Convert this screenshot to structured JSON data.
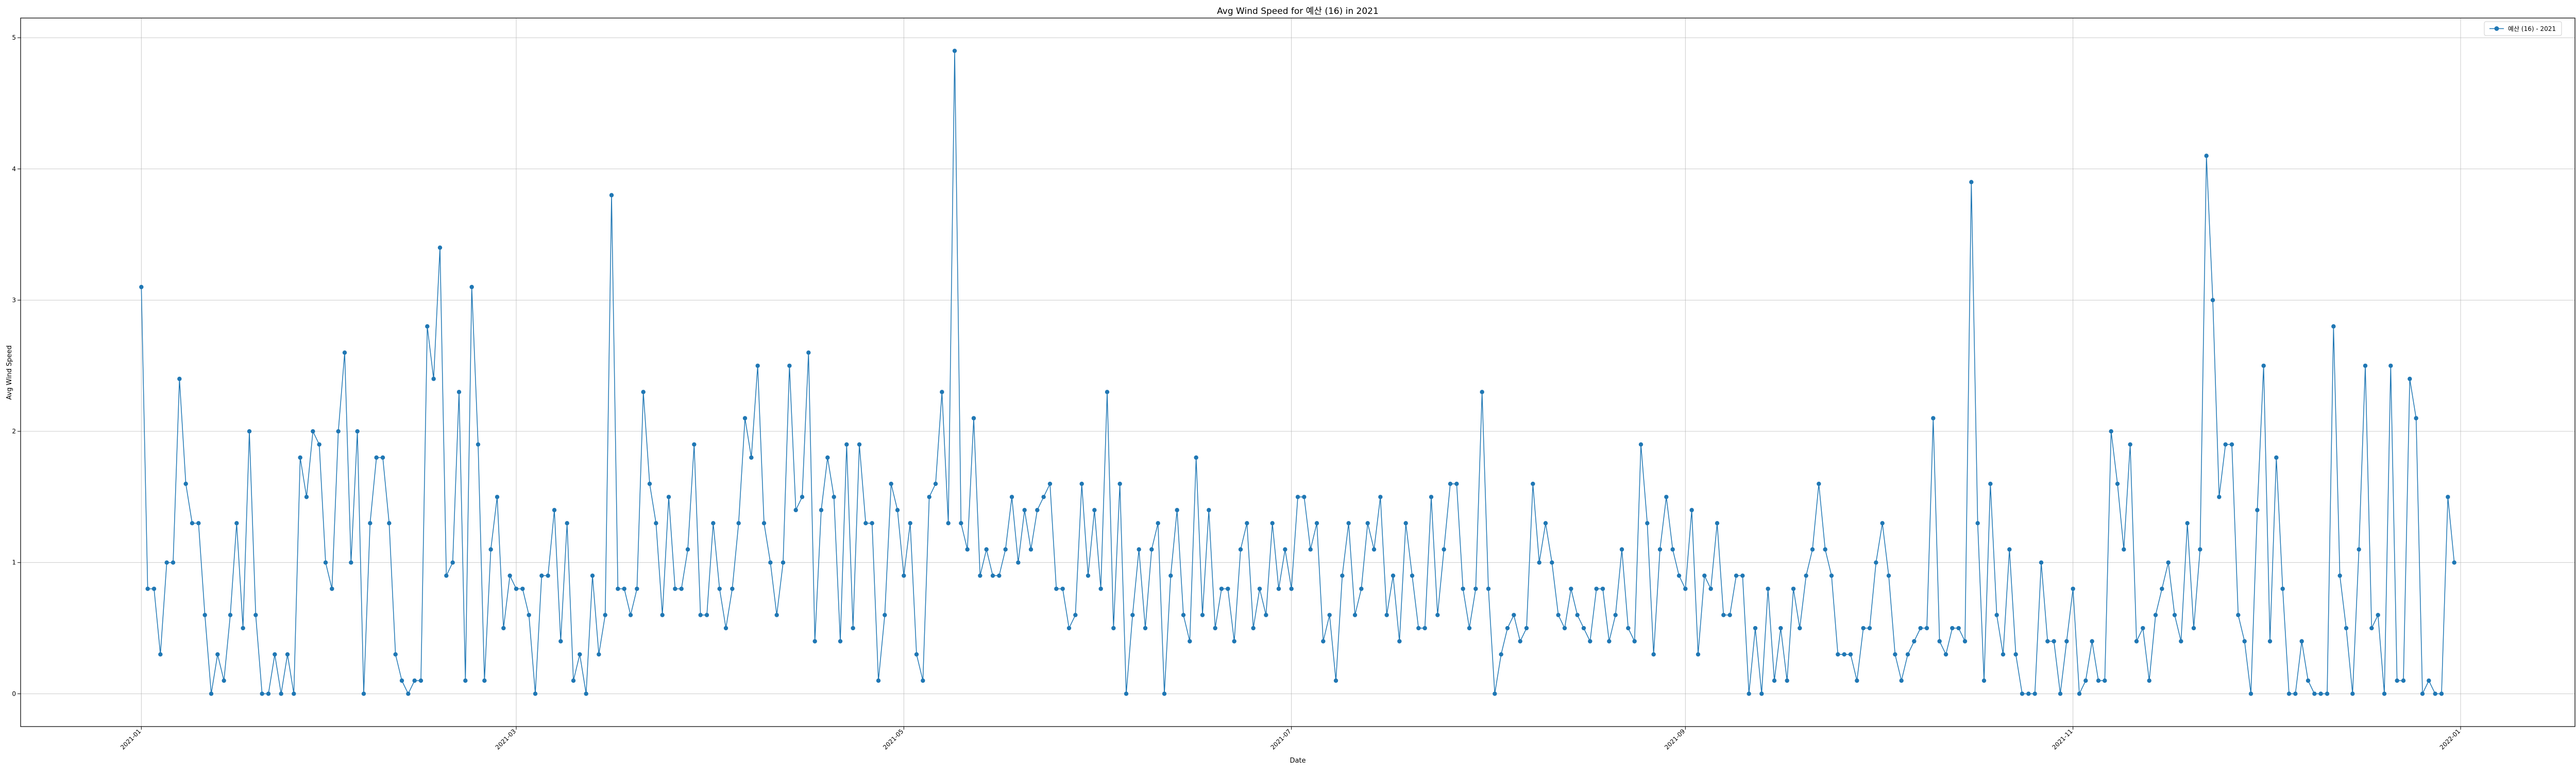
{
  "colors": {
    "background": "#ffffff",
    "series": "#1f77b4",
    "grid": "#b0b0b0",
    "axis": "#000000"
  },
  "chart_data": {
    "type": "line",
    "title": "Avg Wind Speed for 예산 (16) in 2021",
    "xlabel": "Date",
    "ylabel": "Avg Wind Speed",
    "grid": true,
    "legend_position": "top-right",
    "marker": "circle",
    "xlim": [
      "2020-12-13",
      "2022-01-19"
    ],
    "ylim": [
      -0.25,
      5.15
    ],
    "x_ticks": [
      {
        "date": "2021-01-01",
        "label": "2021-01"
      },
      {
        "date": "2021-03-01",
        "label": "2021-03"
      },
      {
        "date": "2021-05-01",
        "label": "2021-05"
      },
      {
        "date": "2021-07-01",
        "label": "2021-07"
      },
      {
        "date": "2021-09-01",
        "label": "2021-09"
      },
      {
        "date": "2021-11-01",
        "label": "2021-11"
      },
      {
        "date": "2022-01-01",
        "label": "2022-01"
      }
    ],
    "y_ticks": [
      {
        "value": 0,
        "label": "0"
      },
      {
        "value": 1,
        "label": "1"
      },
      {
        "value": 2,
        "label": "2"
      },
      {
        "value": 3,
        "label": "3"
      },
      {
        "value": 4,
        "label": "4"
      },
      {
        "value": 5,
        "label": "5"
      }
    ],
    "series": [
      {
        "name": "예산 (16) - 2021",
        "start_date": "2021-01-01",
        "values": [
          3.1,
          0.8,
          0.8,
          0.3,
          1.0,
          1.0,
          2.4,
          1.6,
          1.3,
          1.3,
          0.6,
          0.0,
          0.3,
          0.1,
          0.6,
          1.3,
          0.5,
          2.0,
          0.6,
          0.0,
          0.0,
          0.3,
          0.0,
          0.3,
          0.0,
          1.8,
          1.5,
          2.0,
          1.9,
          1.0,
          0.8,
          2.0,
          2.6,
          1.0,
          2.0,
          0.0,
          1.3,
          1.8,
          1.8,
          1.3,
          0.3,
          0.1,
          0.0,
          0.1,
          0.1,
          2.8,
          2.4,
          3.4,
          0.9,
          1.0,
          2.3,
          0.1,
          3.1,
          1.9,
          0.1,
          1.1,
          1.5,
          0.5,
          0.9,
          0.8,
          0.8,
          0.6,
          0.0,
          0.9,
          0.9,
          1.4,
          0.4,
          1.3,
          0.1,
          0.3,
          0.0,
          0.9,
          0.3,
          0.6,
          3.8,
          0.8,
          0.8,
          0.6,
          0.8,
          2.3,
          1.6,
          1.3,
          0.6,
          1.5,
          0.8,
          0.8,
          1.1,
          1.9,
          0.6,
          0.6,
          1.3,
          0.8,
          0.5,
          0.8,
          1.3,
          2.1,
          1.8,
          2.5,
          1.3,
          1.0,
          0.6,
          1.0,
          2.5,
          1.4,
          1.5,
          2.6,
          0.4,
          1.4,
          1.8,
          1.5,
          0.4,
          1.9,
          0.5,
          1.9,
          1.3,
          1.3,
          0.1,
          0.6,
          1.6,
          1.4,
          0.9,
          1.3,
          0.3,
          0.1,
          1.5,
          1.6,
          2.3,
          1.3,
          4.9,
          1.3,
          1.1,
          2.1,
          0.9,
          1.1,
          0.9,
          0.9,
          1.1,
          1.5,
          1.0,
          1.4,
          1.1,
          1.4,
          1.5,
          1.6,
          0.8,
          0.8,
          0.5,
          0.6,
          1.6,
          0.9,
          1.4,
          0.8,
          2.3,
          0.5,
          1.6,
          0.0,
          0.6,
          1.1,
          0.5,
          1.1,
          1.3,
          0.0,
          0.9,
          1.4,
          0.6,
          0.4,
          1.8,
          0.6,
          1.4,
          0.5,
          0.8,
          0.8,
          0.4,
          1.1,
          1.3,
          0.5,
          0.8,
          0.6,
          1.3,
          0.8,
          1.1,
          0.8,
          1.5,
          1.5,
          1.1,
          1.3,
          0.4,
          0.6,
          0.1,
          0.9,
          1.3,
          0.6,
          0.8,
          1.3,
          1.1,
          1.5,
          0.6,
          0.9,
          0.4,
          1.3,
          0.9,
          0.5,
          0.5,
          1.5,
          0.6,
          1.1,
          1.6,
          1.6,
          0.8,
          0.5,
          0.8,
          2.3,
          0.8,
          0.0,
          0.3,
          0.5,
          0.6,
          0.4,
          0.5,
          1.6,
          1.0,
          1.3,
          1.0,
          0.6,
          0.5,
          0.8,
          0.6,
          0.5,
          0.4,
          0.8,
          0.8,
          0.4,
          0.6,
          1.1,
          0.5,
          0.4,
          1.9,
          1.3,
          0.3,
          1.1,
          1.5,
          1.1,
          0.9,
          0.8,
          1.4,
          0.3,
          0.9,
          0.8,
          1.3,
          0.6,
          0.6,
          0.9,
          0.9,
          0.0,
          0.5,
          0.0,
          0.8,
          0.1,
          0.5,
          0.1,
          0.8,
          0.5,
          0.9,
          1.1,
          1.6,
          1.1,
          0.9,
          0.3,
          0.3,
          0.3,
          0.1,
          0.5,
          0.5,
          1.0,
          1.3,
          0.9,
          0.3,
          0.1,
          0.3,
          0.4,
          0.5,
          0.5,
          2.1,
          0.4,
          0.3,
          0.5,
          0.5,
          0.4,
          3.9,
          1.3,
          0.1,
          1.6,
          0.6,
          0.3,
          1.1,
          0.3,
          0.0,
          0.0,
          0.0,
          1.0,
          0.4,
          0.4,
          0.0,
          0.4,
          0.8,
          0.0,
          0.1,
          0.4,
          0.1,
          0.1,
          2.0,
          1.6,
          1.1,
          1.9,
          0.4,
          0.5,
          0.1,
          0.6,
          0.8,
          1.0,
          0.6,
          0.4,
          1.3,
          0.5,
          1.1,
          4.1,
          3.0,
          1.5,
          1.9,
          1.9,
          0.6,
          0.4,
          0.0,
          1.4,
          2.5,
          0.4,
          1.8,
          0.8,
          0.0,
          0.0,
          0.4,
          0.1,
          0.0,
          0.0,
          0.0,
          2.8,
          0.9,
          0.5,
          0.0,
          1.1,
          2.5,
          0.5,
          0.6,
          0.0,
          2.5,
          0.1,
          0.1,
          2.4,
          2.1,
          0.0,
          0.1,
          0.0,
          0.0,
          1.5,
          1.0
        ]
      }
    ]
  }
}
